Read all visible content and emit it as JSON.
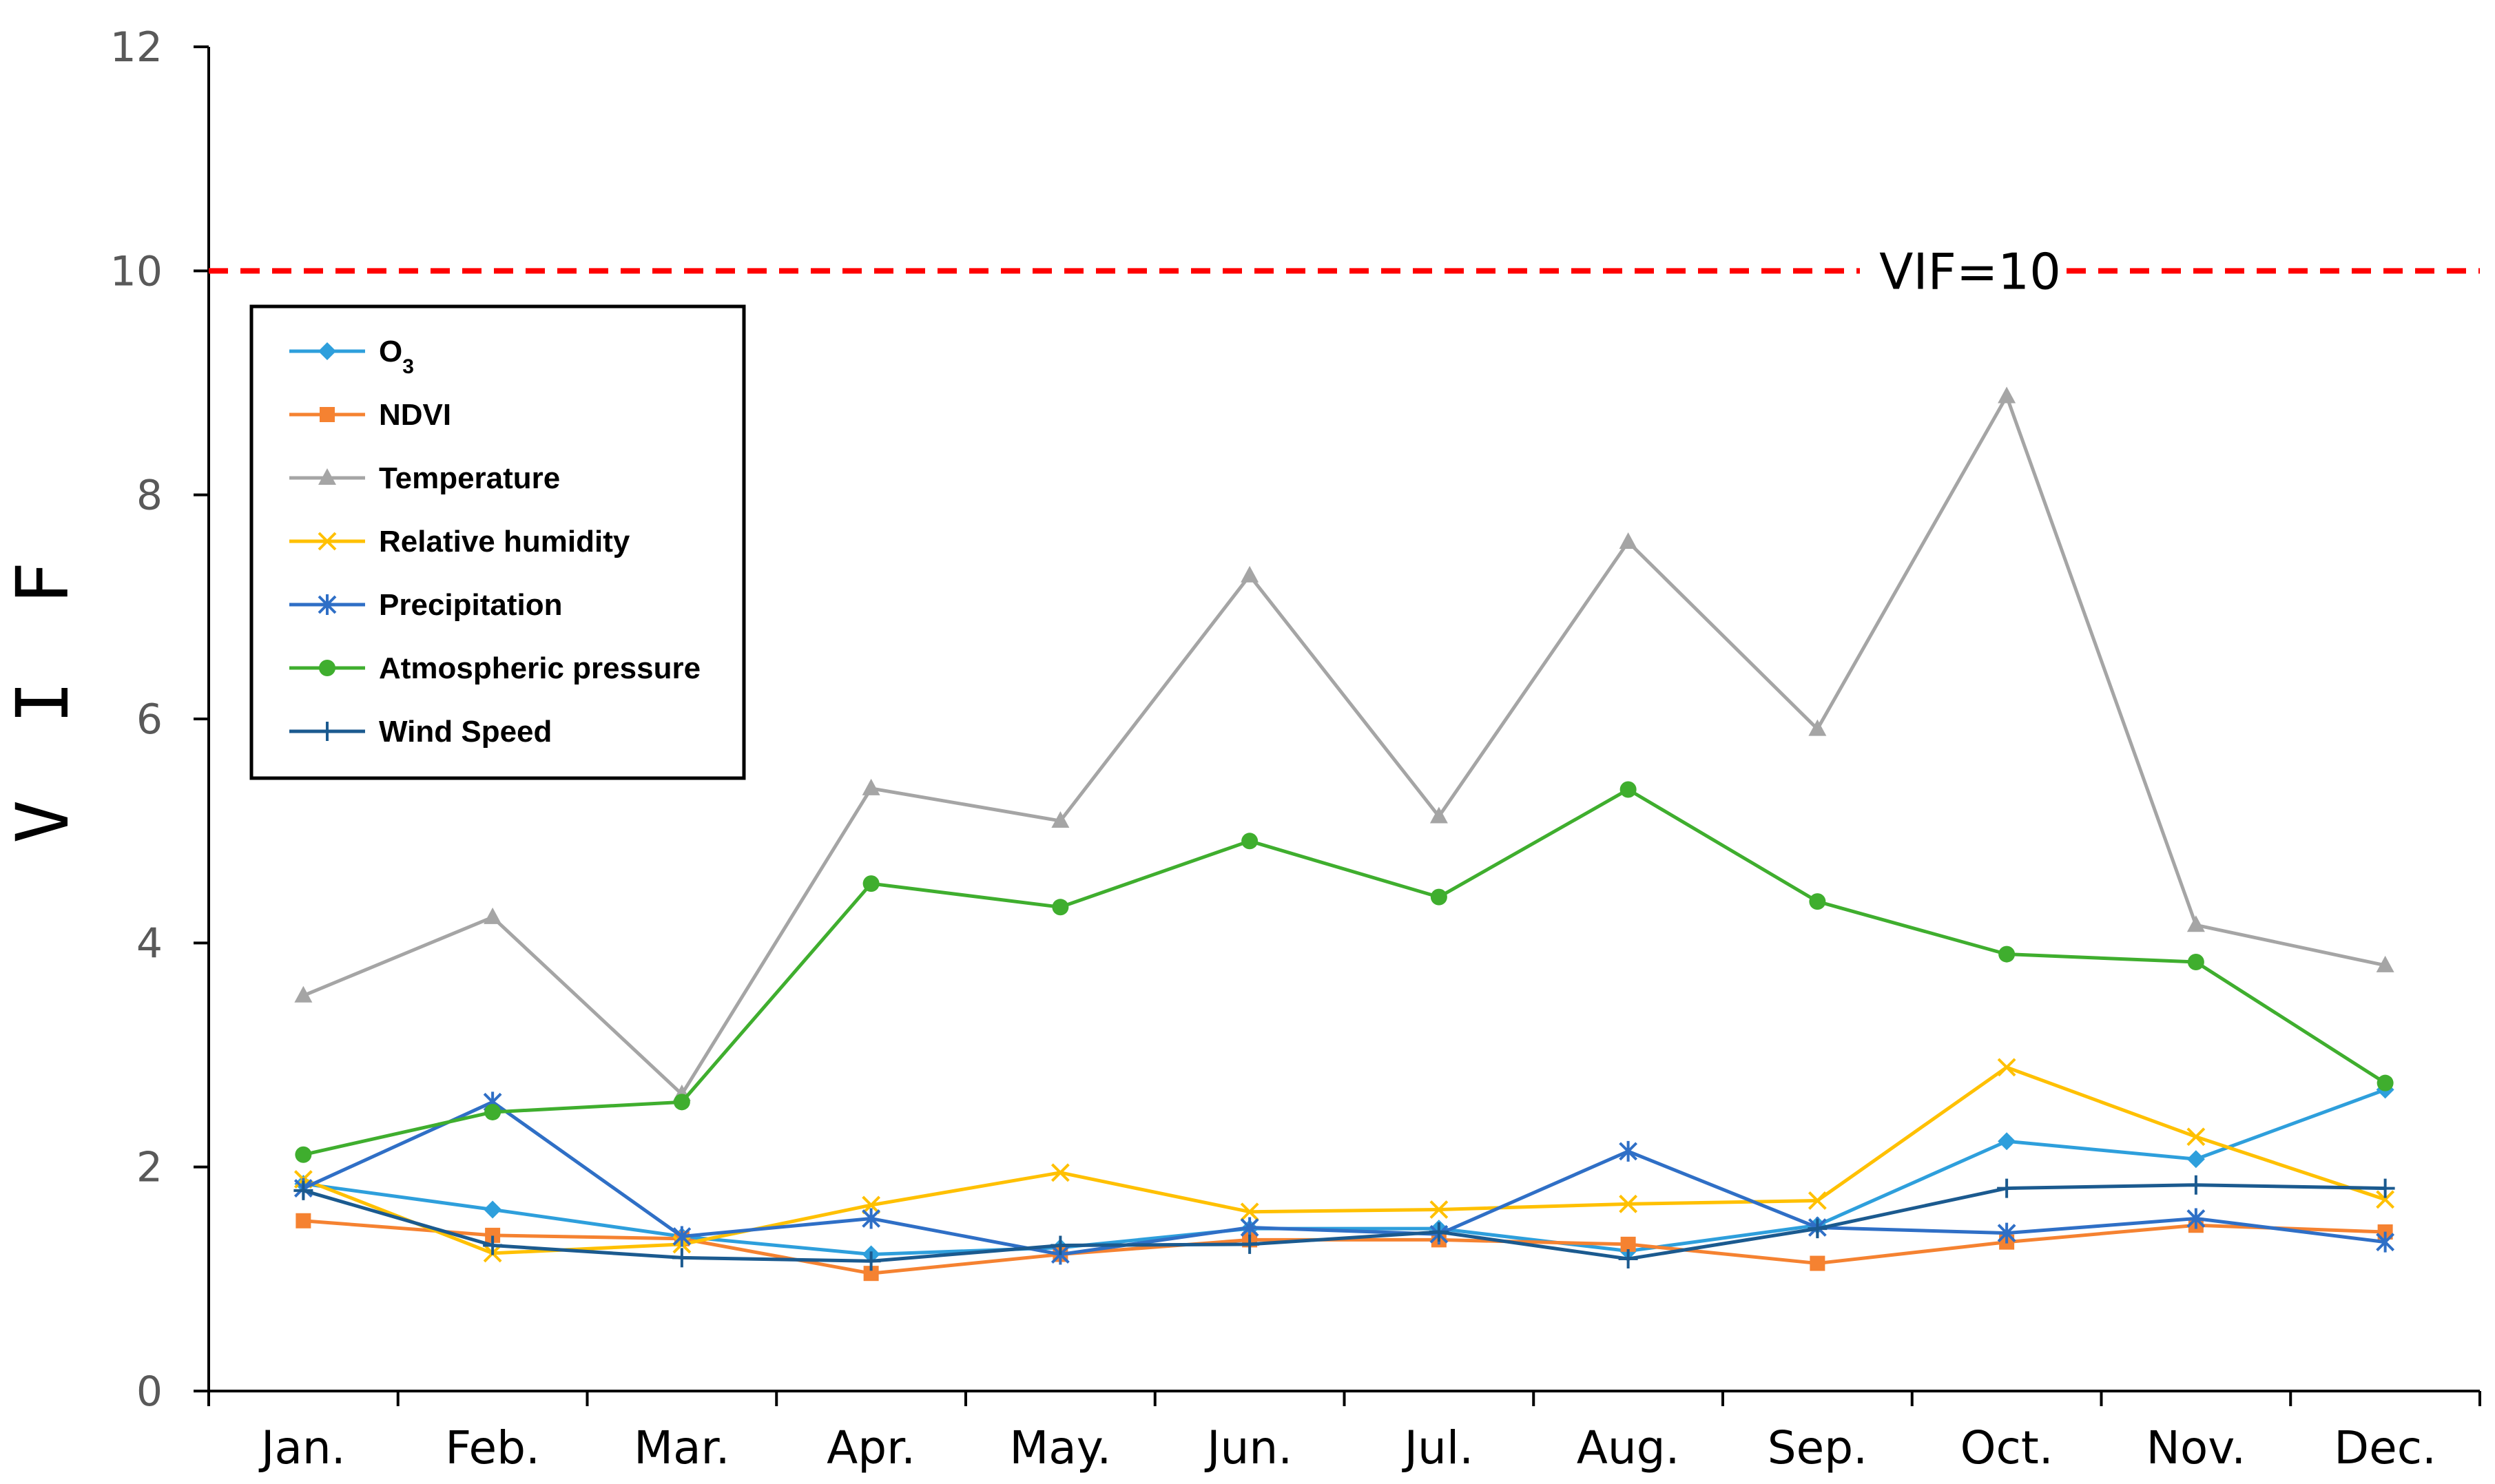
{
  "chart_data": {
    "type": "line",
    "title": "",
    "xlabel": "",
    "ylabel": "V I F",
    "ylim": [
      0,
      12
    ],
    "yticks": [
      "0",
      "2",
      "4",
      "6",
      "8",
      "10",
      "12"
    ],
    "grid": false,
    "legend_position": "top-left",
    "categories": [
      "Jan.",
      "Feb.",
      "Mar.",
      "Apr.",
      "May.",
      "Jun.",
      "Jul.",
      "Aug.",
      "Sep.",
      "Oct.",
      "Nov.",
      "Dec."
    ],
    "reference_line": {
      "value": 10,
      "label": "VIF=10",
      "color": "#FF0000",
      "style": "dashed"
    },
    "series": [
      {
        "name": "O3",
        "color": "#2E9FDC",
        "marker": "diamond",
        "values": [
          1.85,
          1.62,
          1.38,
          1.22,
          1.28,
          1.45,
          1.45,
          1.25,
          1.48,
          2.23,
          2.07,
          2.69
        ]
      },
      {
        "name": "NDVI",
        "color": "#F58231",
        "marker": "square",
        "values": [
          1.52,
          1.39,
          1.36,
          1.05,
          1.22,
          1.35,
          1.35,
          1.31,
          1.14,
          1.33,
          1.48,
          1.42
        ]
      },
      {
        "name": "Temperature",
        "color": "#A5A5A5",
        "marker": "triangle",
        "values": [
          3.53,
          4.23,
          2.65,
          5.38,
          5.09,
          7.28,
          5.13,
          7.58,
          5.91,
          8.88,
          4.16,
          3.8
        ]
      },
      {
        "name": "Relative humidity",
        "color": "#FFC000",
        "marker": "x",
        "values": [
          1.89,
          1.23,
          1.31,
          1.66,
          1.95,
          1.6,
          1.62,
          1.67,
          1.7,
          2.89,
          2.27,
          1.71
        ]
      },
      {
        "name": "Precipitation",
        "color": "#2F6FC6",
        "marker": "asterisk",
        "values": [
          1.81,
          2.58,
          1.38,
          1.54,
          1.22,
          1.46,
          1.4,
          2.14,
          1.46,
          1.41,
          1.54,
          1.33
        ]
      },
      {
        "name": "Atmospheric pressure",
        "color": "#3FAE2E",
        "marker": "circle",
        "values": [
          2.11,
          2.49,
          2.58,
          4.53,
          4.32,
          4.91,
          4.41,
          5.37,
          4.37,
          3.9,
          3.83,
          2.75
        ]
      },
      {
        "name": "Wind Speed",
        "color": "#1B5A8F",
        "marker": "plus",
        "values": [
          1.79,
          1.3,
          1.19,
          1.16,
          1.3,
          1.31,
          1.42,
          1.18,
          1.45,
          1.81,
          1.84,
          1.81
        ]
      }
    ]
  }
}
